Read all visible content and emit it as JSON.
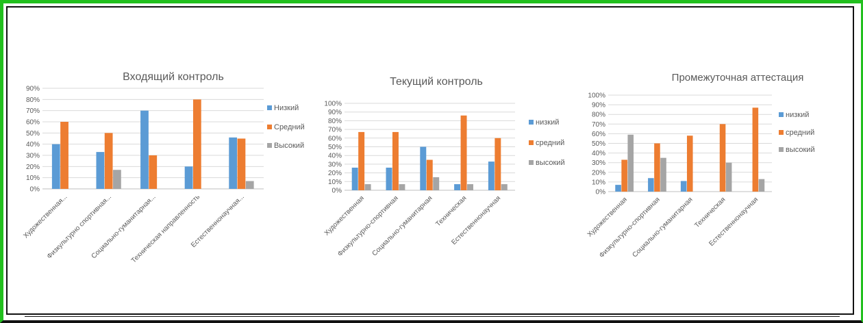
{
  "colors": {
    "frame": "#22c01e",
    "grid": "#d9d9d9",
    "text": "#595959"
  },
  "chart_data": [
    {
      "type": "bar",
      "title": "Входящий контроль",
      "categories": [
        "Художественная...",
        "Физкультурно спортивная...",
        "Социально-гуманитарная...",
        "Техническая направленность",
        "Естественнонаучная..."
      ],
      "series": [
        {
          "name": "Низкий",
          "color": "#5b9bd5",
          "values": [
            40,
            33,
            70,
            20,
            46
          ]
        },
        {
          "name": "Средний",
          "color": "#ed7d31",
          "values": [
            60,
            50,
            30,
            80,
            45
          ]
        },
        {
          "name": "Высокий",
          "color": "#a5a5a5",
          "values": [
            0,
            17,
            0,
            0,
            7
          ]
        }
      ],
      "yticks": [
        "0%",
        "10%",
        "20%",
        "30%",
        "40%",
        "50%",
        "60%",
        "70%",
        "80%",
        "90%"
      ],
      "ylim": [
        0,
        90
      ],
      "legend": "right",
      "grid": true
    },
    {
      "type": "bar",
      "title": "Текущий контроль",
      "categories": [
        "Художественная",
        "Физкультурно-спортивная",
        "Социально-гуманитарная",
        "Техническая",
        "Естественнонаучная"
      ],
      "series": [
        {
          "name": "низкий",
          "color": "#5b9bd5",
          "values": [
            26,
            26,
            50,
            7,
            33
          ]
        },
        {
          "name": "средний",
          "color": "#ed7d31",
          "values": [
            67,
            67,
            35,
            86,
            60
          ]
        },
        {
          "name": "высокий",
          "color": "#a5a5a5",
          "values": [
            7,
            7,
            15,
            7,
            7
          ]
        }
      ],
      "yticks": [
        "0%",
        "10%",
        "20%",
        "30%",
        "40%",
        "50%",
        "60%",
        "70%",
        "80%",
        "90%",
        "100%"
      ],
      "ylim": [
        0,
        100
      ],
      "legend": "right",
      "grid": true
    },
    {
      "type": "bar",
      "title": "Промежуточная аттестация",
      "categories": [
        "Художественная",
        "Физкультурно-спортивная",
        "Социально-гуманитарная",
        "Техническая",
        "Естественнонаучная"
      ],
      "series": [
        {
          "name": "низкий",
          "color": "#5b9bd5",
          "values": [
            7,
            14,
            11,
            0,
            0
          ]
        },
        {
          "name": "средний",
          "color": "#ed7d31",
          "values": [
            33,
            50,
            58,
            70,
            87
          ]
        },
        {
          "name": "высокий",
          "color": "#a5a5a5",
          "values": [
            59,
            35,
            0,
            30,
            13
          ]
        }
      ],
      "yticks": [
        "0%",
        "10%",
        "20%",
        "30%",
        "40%",
        "50%",
        "60%",
        "70%",
        "80%",
        "90%",
        "100%"
      ],
      "ylim": [
        0,
        100
      ],
      "legend": "right",
      "grid": true
    }
  ]
}
